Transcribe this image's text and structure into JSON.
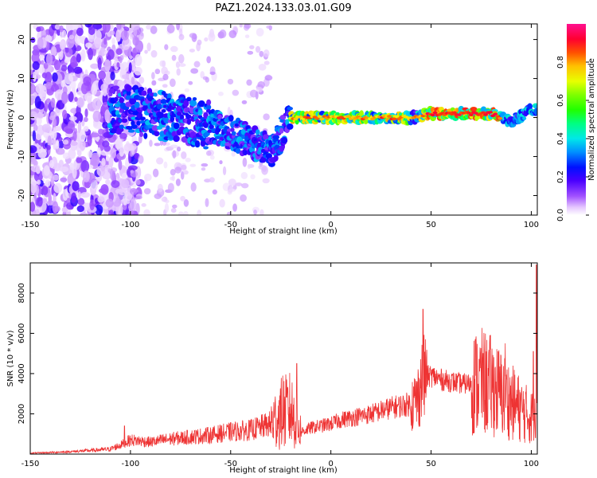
{
  "title": "PAZ1.2024.133.03.01.G09",
  "chart_data": [
    {
      "type": "heatmap",
      "xlabel": "Height of straight line (km)",
      "ylabel": "Frequency (Hz)",
      "xlim": [
        -150,
        103
      ],
      "ylim": [
        -25,
        24
      ],
      "xticks": [
        -150,
        -100,
        -50,
        0,
        50,
        100
      ],
      "yticks": [
        -20,
        -10,
        0,
        10,
        20
      ],
      "colorbar": {
        "label": "Normalized spectral amplitude",
        "range": [
          0,
          1
        ],
        "ticks": [
          0.0,
          0.2,
          0.4,
          0.6,
          0.8
        ],
        "colormap": "gist_ncar_r"
      },
      "ridge": {
        "description_points": [
          {
            "x": -100,
            "y": 2
          },
          {
            "x": -80,
            "y": 0
          },
          {
            "x": -60,
            "y": -2
          },
          {
            "x": -40,
            "y": -6
          },
          {
            "x": -30,
            "y": -9
          },
          {
            "x": -20,
            "y": 0
          },
          {
            "x": 0,
            "y": 0
          },
          {
            "x": 20,
            "y": 0
          },
          {
            "x": 40,
            "y": 0
          },
          {
            "x": 50,
            "y": 1
          },
          {
            "x": 80,
            "y": 1
          },
          {
            "x": 90,
            "y": -1
          },
          {
            "x": 100,
            "y": 2
          }
        ]
      }
    },
    {
      "type": "line",
      "xlabel": "Height of straight line (km)",
      "ylabel": "SNR (10 * v/v)",
      "xlim": [
        -150,
        103
      ],
      "ylim": [
        0,
        9500
      ],
      "xticks": [
        -150,
        -100,
        -50,
        0,
        50,
        100
      ],
      "yticks": [
        2000,
        4000,
        6000,
        8000
      ],
      "series": [
        {
          "color": "#ee3333",
          "x": [
            -150,
            -140,
            -130,
            -120,
            -110,
            -105,
            -100,
            -95,
            -90,
            -80,
            -70,
            -60,
            -50,
            -40,
            -35,
            -30,
            -25,
            -20,
            -15,
            -10,
            -5,
            0,
            5,
            10,
            20,
            30,
            35,
            40,
            43,
            45,
            47,
            50,
            55,
            60,
            65,
            70,
            75,
            80,
            85,
            90,
            95,
            100,
            102,
            103
          ],
          "y": [
            50,
            80,
            120,
            180,
            250,
            450,
            700,
            650,
            600,
            750,
            850,
            950,
            1100,
            1200,
            1350,
            1500,
            2000,
            2200,
            1100,
            1300,
            1400,
            1500,
            1700,
            1800,
            2000,
            2300,
            2400,
            2500,
            2700,
            3500,
            3800,
            3900,
            3700,
            3600,
            3500,
            3500,
            3600,
            3400,
            3000,
            2600,
            2200,
            1800,
            2500,
            6000
          ],
          "spikes": [
            {
              "x": -103,
              "y": 1400
            },
            {
              "x": -24,
              "y": 3900
            },
            {
              "x": -17,
              "y": 4500
            },
            {
              "x": 46,
              "y": 7200
            },
            {
              "x": 76,
              "y": 5000
            },
            {
              "x": 87,
              "y": 5500
            },
            {
              "x": 101,
              "y": 5100
            },
            {
              "x": 102.5,
              "y": 9400
            }
          ]
        }
      ]
    }
  ]
}
